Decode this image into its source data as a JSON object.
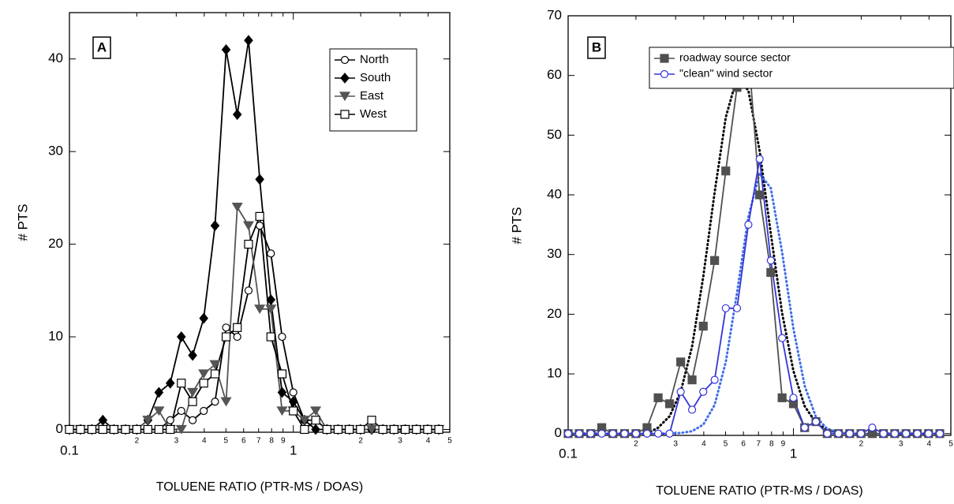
{
  "chart_data": [
    {
      "type": "line",
      "panel_label": "A",
      "ylabel": "# PTS",
      "xlabel": "TOLUENE RATIO (PTR-MS / DOAS)",
      "xscale": "log",
      "xlim": [
        0.1,
        5
      ],
      "ylim": [
        -0.3,
        45
      ],
      "xticks": [
        0.1,
        {
          "value": 0.2,
          "label": "2"
        },
        {
          "value": 0.3,
          "label": "3"
        },
        {
          "value": 0.4,
          "label": "4"
        },
        {
          "value": 0.5,
          "label": "5"
        },
        {
          "value": 0.6,
          "label": "6"
        },
        {
          "value": 0.7,
          "label": "7"
        },
        {
          "value": 0.8,
          "label": "8"
        },
        {
          "value": 0.9,
          "label": "9"
        },
        1,
        {
          "value": 2,
          "label": "2"
        },
        {
          "value": 3,
          "label": "3"
        },
        {
          "value": 4,
          "label": "4"
        },
        {
          "value": 5,
          "label": "5"
        }
      ],
      "yticks": [
        0,
        10,
        20,
        30,
        40
      ],
      "legend": "top-right",
      "x": [
        0.1,
        0.112,
        0.126,
        0.141,
        0.158,
        0.178,
        0.2,
        0.224,
        0.251,
        0.282,
        0.316,
        0.355,
        0.398,
        0.447,
        0.501,
        0.562,
        0.631,
        0.708,
        0.794,
        0.891,
        1,
        1.122,
        1.259,
        1.413,
        1.585,
        1.778,
        1.995,
        2.239,
        2.512,
        2.818,
        3.162,
        3.548,
        3.981,
        4.467
      ],
      "series": [
        {
          "name": "North",
          "color": "#000000",
          "marker": "circle",
          "filled": false,
          "values": [
            0,
            0,
            0,
            0,
            0,
            0,
            0,
            0,
            0,
            1,
            2,
            1,
            2,
            3,
            11,
            10,
            15,
            22,
            19,
            10,
            4,
            1,
            1,
            0,
            0,
            0,
            0,
            0,
            0,
            0,
            0,
            0,
            0,
            0
          ]
        },
        {
          "name": "South",
          "color": "#000000",
          "marker": "diamond",
          "filled": true,
          "values": [
            0,
            0,
            0,
            1,
            0,
            0,
            0,
            1,
            4,
            5,
            10,
            8,
            12,
            22,
            41,
            34,
            42,
            27,
            14,
            4,
            3,
            1,
            0,
            0,
            0,
            0,
            0,
            0,
            0,
            0,
            0,
            0,
            0,
            0
          ]
        },
        {
          "name": "East",
          "color": "#555555",
          "marker": "triangle-down",
          "filled": true,
          "values": [
            0,
            0,
            0,
            0,
            0,
            0,
            0,
            1,
            2,
            0,
            0,
            4,
            6,
            7,
            3,
            24,
            22,
            13,
            13,
            2,
            2,
            1,
            2,
            0,
            0,
            0,
            0,
            0,
            0,
            0,
            0,
            0,
            0,
            0
          ]
        },
        {
          "name": "West",
          "color": "#000000",
          "marker": "square",
          "filled": false,
          "values": [
            0,
            0,
            0,
            0,
            0,
            0,
            0,
            0,
            0,
            0,
            5,
            3,
            5,
            6,
            10,
            11,
            20,
            23,
            10,
            6,
            2,
            0,
            1,
            0,
            0,
            0,
            0,
            1,
            0,
            0,
            0,
            0,
            0,
            0
          ]
        }
      ]
    },
    {
      "type": "line",
      "panel_label": "B",
      "ylabel": "# PTS",
      "xlabel": "TOLUENE RATIO (PTR-MS / DOAS)",
      "xscale": "log",
      "xlim": [
        0.1,
        5
      ],
      "ylim": [
        -0.3,
        70
      ],
      "xticks": [
        0.1,
        {
          "value": 0.2,
          "label": "2"
        },
        {
          "value": 0.3,
          "label": "3"
        },
        {
          "value": 0.4,
          "label": "4"
        },
        {
          "value": 0.5,
          "label": "5"
        },
        {
          "value": 0.6,
          "label": "6"
        },
        {
          "value": 0.7,
          "label": "7"
        },
        {
          "value": 0.8,
          "label": "8"
        },
        {
          "value": 0.9,
          "label": "9"
        },
        1,
        {
          "value": 2,
          "label": "2"
        },
        {
          "value": 3,
          "label": "3"
        },
        {
          "value": 4,
          "label": "4"
        },
        {
          "value": 5,
          "label": "5"
        }
      ],
      "yticks": [
        0,
        10,
        20,
        30,
        40,
        50,
        60,
        70
      ],
      "legend": "top-right",
      "x": [
        0.1,
        0.112,
        0.126,
        0.141,
        0.158,
        0.178,
        0.2,
        0.224,
        0.251,
        0.282,
        0.316,
        0.355,
        0.398,
        0.447,
        0.501,
        0.562,
        0.631,
        0.708,
        0.794,
        0.891,
        1,
        1.122,
        1.259,
        1.413,
        1.585,
        1.778,
        1.995,
        2.239,
        2.512,
        2.818,
        3.162,
        3.548,
        3.981,
        4.467
      ],
      "series": [
        {
          "name": "roadway source sector",
          "color": "#505050",
          "marker": "square",
          "filled": true,
          "values": [
            0,
            0,
            0,
            1,
            0,
            0,
            0,
            1,
            6,
            5,
            12,
            9,
            18,
            29,
            44,
            58,
            64,
            40,
            27,
            6,
            5,
            1,
            2,
            0,
            0,
            0,
            0,
            0,
            0,
            0,
            0,
            0,
            0,
            0
          ]
        },
        {
          "name": "\"clean\" wind sector",
          "color": "#3535d8",
          "marker": "circle",
          "filled": false,
          "values": [
            0,
            0,
            0,
            0,
            0,
            0,
            0,
            0,
            0,
            0,
            7,
            4,
            7,
            9,
            21,
            21,
            35,
            46,
            29,
            16,
            6,
            1,
            2,
            0,
            0,
            0,
            0,
            1,
            0,
            0,
            0,
            0,
            0,
            0
          ]
        }
      ],
      "fits": [
        {
          "color": "#000000",
          "values": [
            0,
            0,
            0,
            0,
            0,
            0,
            0,
            0,
            1,
            2.9,
            7,
            14.6,
            26.3,
            40.4,
            53,
            59.7,
            57.5,
            47.4,
            33.5,
            20.2,
            10.5,
            4.6,
            1.8,
            0.6,
            0.2,
            0,
            0,
            0,
            0,
            0,
            0,
            0,
            0,
            0
          ]
        },
        {
          "color": "#3e6ee8",
          "values": [
            0,
            0,
            0,
            0,
            0,
            0,
            0,
            0,
            0,
            0,
            0.1,
            0.4,
            1.5,
            4.8,
            12,
            23.6,
            36.3,
            43.6,
            41.1,
            30.4,
            17.6,
            8,
            2.8,
            0.8,
            0.2,
            0,
            0,
            0,
            0,
            0,
            0,
            0,
            0,
            0
          ]
        }
      ]
    }
  ]
}
